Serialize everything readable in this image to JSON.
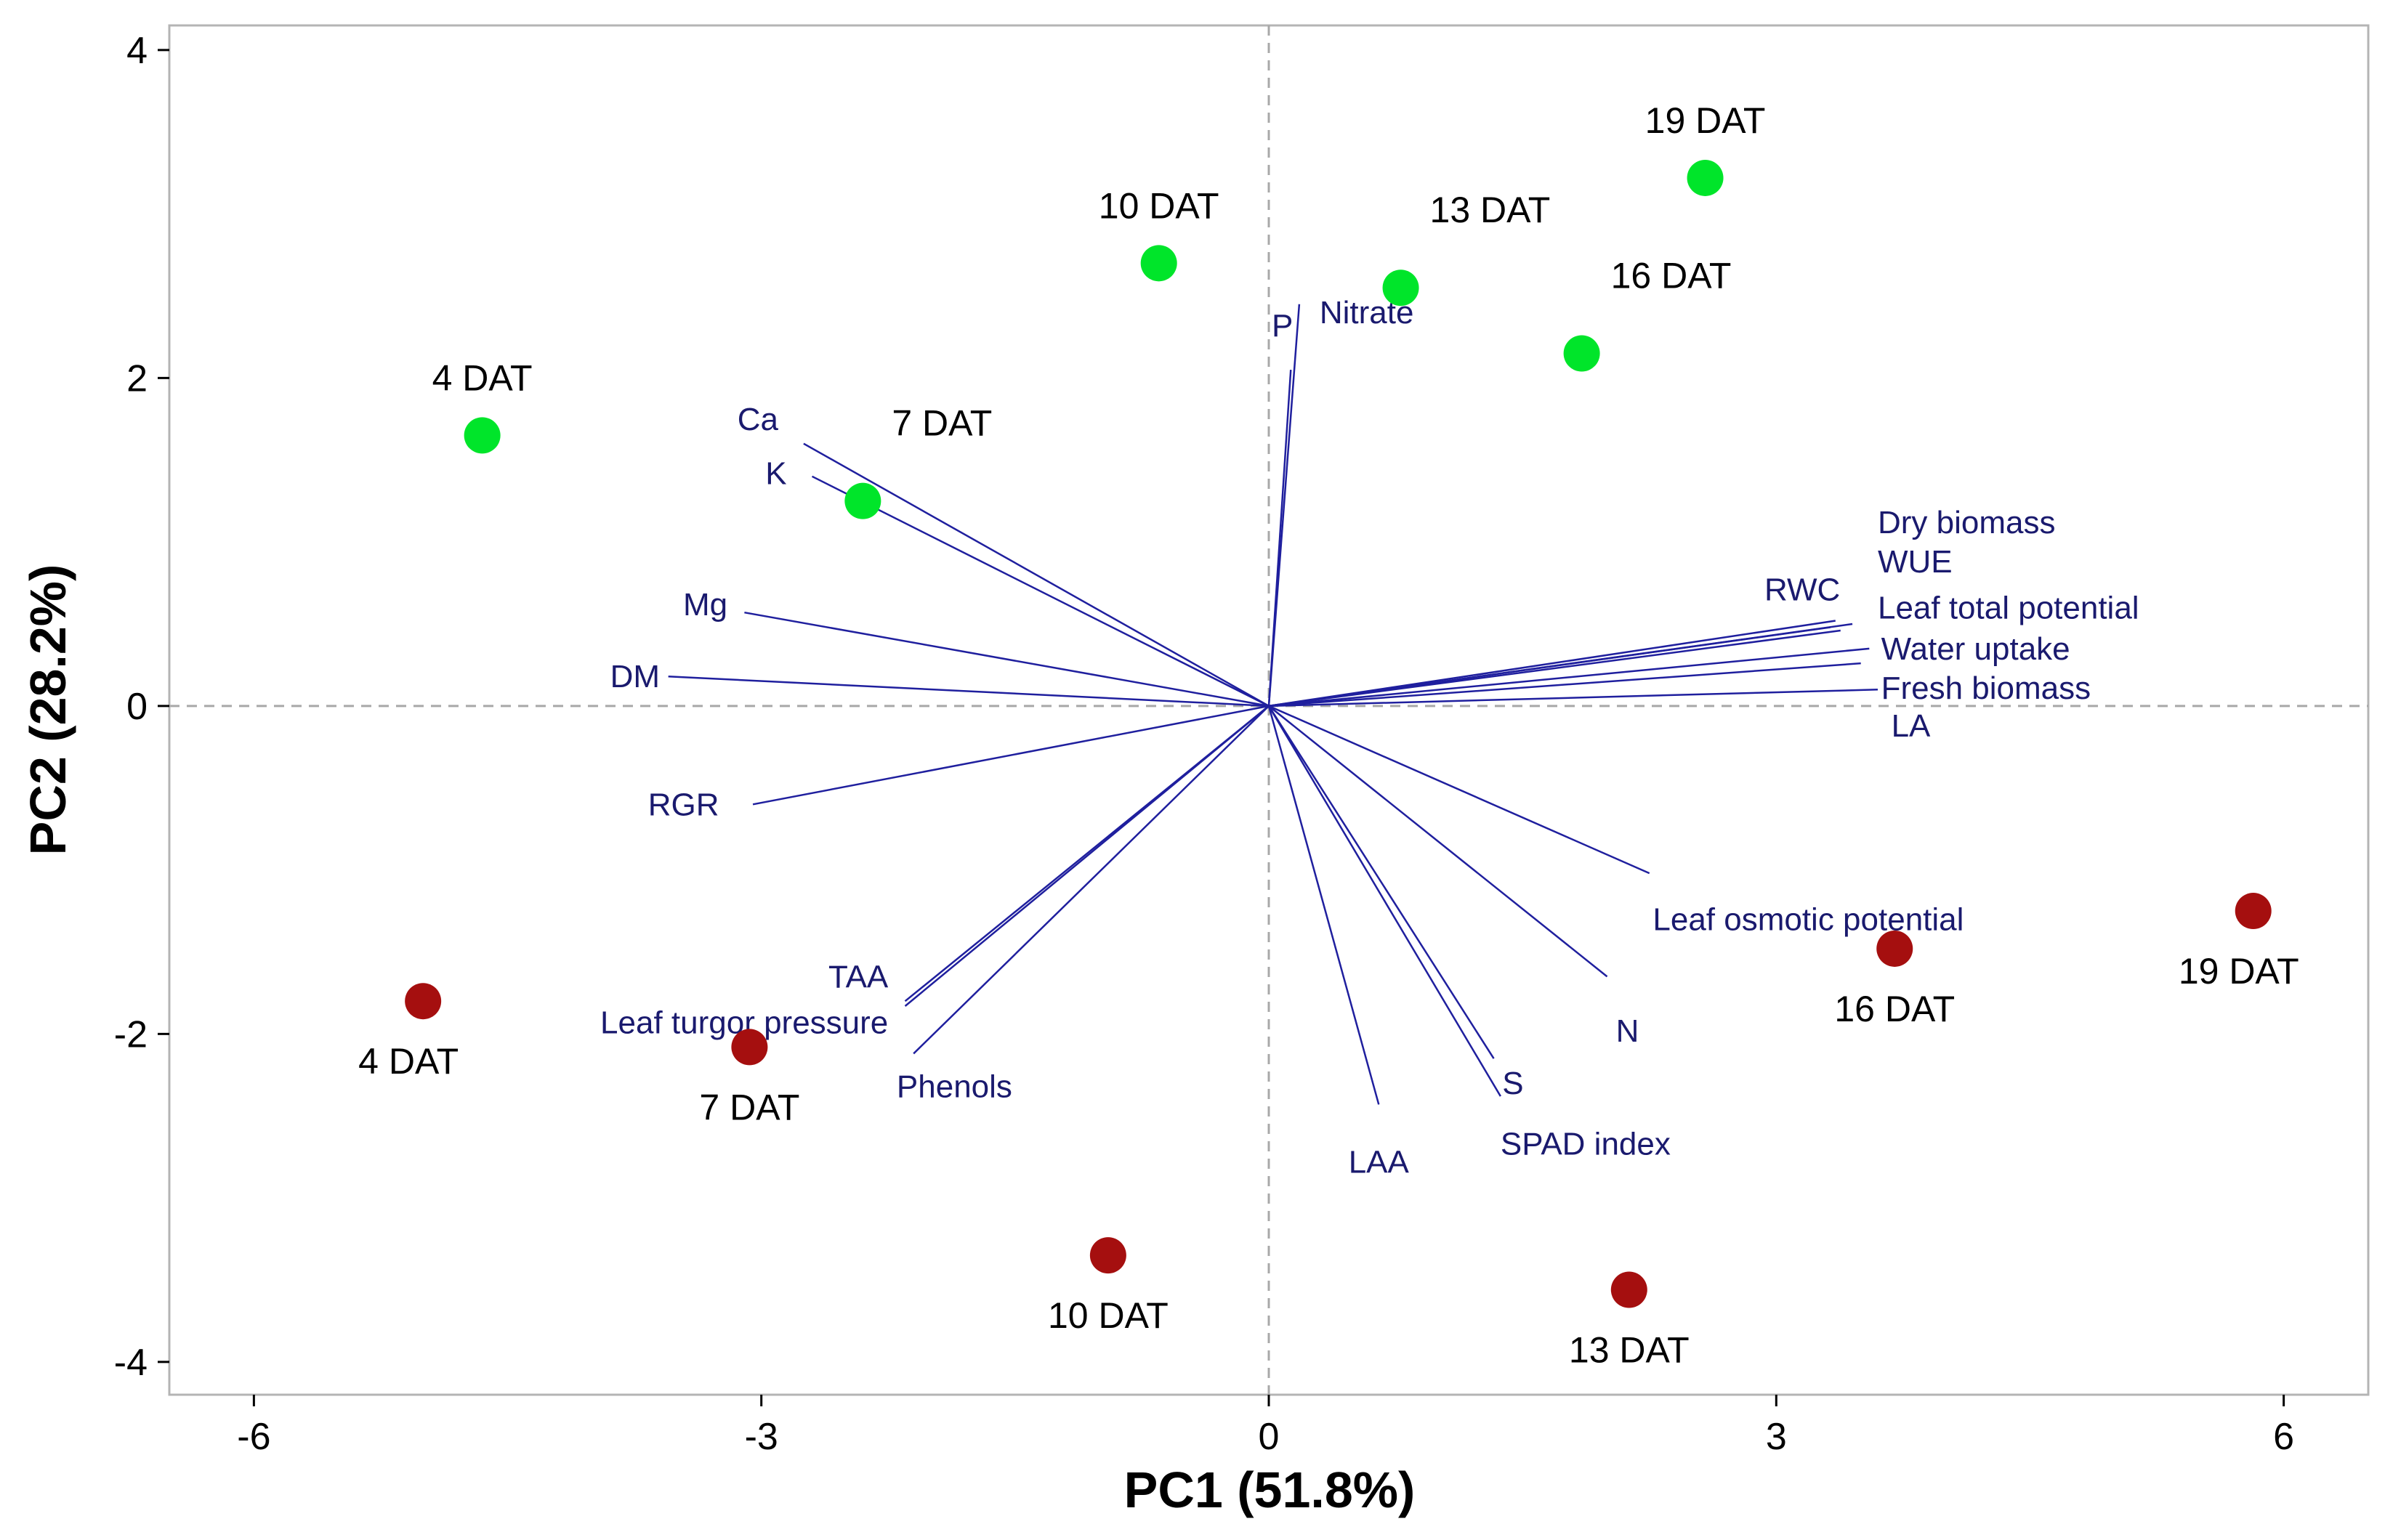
{
  "chart_data": {
    "type": "scatter",
    "subtype": "pca-biplot",
    "xlabel": "PC1 (51.8%)",
    "ylabel": "PC2 (28.2%)",
    "xlim": [
      -6.5,
      6.5
    ],
    "ylim": [
      -4.2,
      4.15
    ],
    "xticks": [
      -6,
      -3,
      0,
      3,
      6
    ],
    "yticks": [
      -4,
      -2,
      0,
      2,
      4
    ],
    "reference_lines": {
      "x": 0,
      "y": 0,
      "style": "dashed"
    },
    "colors": {
      "group_green": "#00e52a",
      "group_red": "#a50f0f",
      "vector": "#1f1f9e",
      "vector_label": "#1a1a6e",
      "frame": "#b4b4b4",
      "refline": "#a8a8a8"
    },
    "series": [
      {
        "name": "green",
        "color": "#00e52a",
        "points": [
          {
            "label": "4 DAT",
            "x": -4.65,
            "y": 1.65,
            "label_pos": "above"
          },
          {
            "label": "7 DAT",
            "x": -2.4,
            "y": 1.25,
            "label_pos": "above-right"
          },
          {
            "label": "10 DAT",
            "x": -0.65,
            "y": 2.7,
            "label_pos": "above"
          },
          {
            "label": "13 DAT",
            "x": 0.78,
            "y": 2.55,
            "label_pos": "above-right"
          },
          {
            "label": "16 DAT",
            "x": 1.85,
            "y": 2.15,
            "label_pos": "above-right"
          },
          {
            "label": "19 DAT",
            "x": 2.58,
            "y": 3.22,
            "label_pos": "above"
          }
        ]
      },
      {
        "name": "red",
        "color": "#a50f0f",
        "points": [
          {
            "label": "4 DAT",
            "x": -5.0,
            "y": -1.8,
            "label_pos": "below-left"
          },
          {
            "label": "7 DAT",
            "x": -3.07,
            "y": -2.08,
            "label_pos": "below"
          },
          {
            "label": "10 DAT",
            "x": -0.95,
            "y": -3.35,
            "label_pos": "below"
          },
          {
            "label": "13 DAT",
            "x": 2.13,
            "y": -3.56,
            "label_pos": "below"
          },
          {
            "label": "16 DAT",
            "x": 3.7,
            "y": -1.48,
            "label_pos": "below"
          },
          {
            "label": "19 DAT",
            "x": 5.82,
            "y": -1.25,
            "label_pos": "below-left"
          }
        ]
      }
    ],
    "vectors": [
      {
        "name": "Ca",
        "x": -2.75,
        "y": 1.6,
        "label_x": -2.9,
        "label_y": 1.75,
        "anchor": "end"
      },
      {
        "name": "K",
        "x": -2.7,
        "y": 1.4,
        "label_x": -2.85,
        "label_y": 1.42,
        "anchor": "end"
      },
      {
        "name": "Mg",
        "x": -3.1,
        "y": 0.57,
        "label_x": -3.2,
        "label_y": 0.62,
        "anchor": "end"
      },
      {
        "name": "DM",
        "x": -3.55,
        "y": 0.18,
        "label_x": -3.6,
        "label_y": 0.18,
        "anchor": "end"
      },
      {
        "name": "RGR",
        "x": -3.05,
        "y": -0.6,
        "label_x": -3.25,
        "label_y": -0.6,
        "anchor": "end"
      },
      {
        "name": "TAA",
        "x": -2.15,
        "y": -1.8,
        "label_x": -2.25,
        "label_y": -1.65,
        "anchor": "end"
      },
      {
        "name": "Leaf turgor pressure",
        "x": -2.15,
        "y": -1.83,
        "label_x": -2.25,
        "label_y": -1.93,
        "anchor": "end"
      },
      {
        "name": "Phenols",
        "x": -2.1,
        "y": -2.12,
        "label_x": -2.2,
        "label_y": -2.32,
        "anchor": "start"
      },
      {
        "name": "P",
        "x": 0.13,
        "y": 2.05,
        "label_x": 0.08,
        "label_y": 2.32,
        "anchor": "middle"
      },
      {
        "name": "Nitrate",
        "x": 0.18,
        "y": 2.45,
        "label_x": 0.3,
        "label_y": 2.4,
        "anchor": "start"
      },
      {
        "name": "RWC",
        "x": 3.45,
        "y": 0.5,
        "label_x": 2.93,
        "label_y": 0.71,
        "anchor": "start"
      },
      {
        "name": "Dry biomass",
        "x": 3.32,
        "y": 0.48,
        "label_x": 3.6,
        "label_y": 1.12,
        "anchor": "start"
      },
      {
        "name": "WUE",
        "x": 3.38,
        "y": 0.46,
        "label_x": 3.6,
        "label_y": 0.88,
        "anchor": "start"
      },
      {
        "name": "Leaf total potential",
        "x": 3.35,
        "y": 0.52,
        "label_x": 3.6,
        "label_y": 0.6,
        "anchor": "start"
      },
      {
        "name": "Water uptake",
        "x": 3.55,
        "y": 0.35,
        "label_x": 3.62,
        "label_y": 0.35,
        "anchor": "start"
      },
      {
        "name": "Fresh biomass",
        "x": 3.5,
        "y": 0.26,
        "label_x": 3.62,
        "label_y": 0.11,
        "anchor": "start"
      },
      {
        "name": "LA",
        "x": 3.6,
        "y": 0.1,
        "label_x": 3.68,
        "label_y": -0.12,
        "anchor": "start"
      },
      {
        "name": "Leaf osmotic potential",
        "x": 2.25,
        "y": -1.02,
        "label_x": 2.27,
        "label_y": -1.3,
        "anchor": "start"
      },
      {
        "name": "N",
        "x": 2.0,
        "y": -1.65,
        "label_x": 2.12,
        "label_y": -1.98,
        "anchor": "middle"
      },
      {
        "name": "S",
        "x": 1.33,
        "y": -2.15,
        "label_x": 1.38,
        "label_y": -2.3,
        "anchor": "start"
      },
      {
        "name": "SPAD index",
        "x": 1.37,
        "y": -2.38,
        "label_x": 1.37,
        "label_y": -2.67,
        "anchor": "start"
      },
      {
        "name": "LAA",
        "x": 0.65,
        "y": -2.43,
        "label_x": 0.65,
        "label_y": -2.78,
        "anchor": "middle"
      }
    ]
  }
}
